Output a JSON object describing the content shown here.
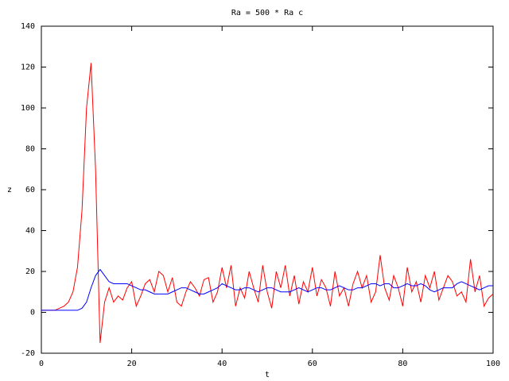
{
  "chart_data": {
    "type": "line",
    "title": "Ra = 500 * Ra c",
    "x_label": "t",
    "y_label": "z",
    "x": [
      0,
      1,
      2,
      3,
      4,
      5,
      6,
      7,
      8,
      9,
      10,
      11,
      12,
      13,
      14,
      15,
      16,
      17,
      18,
      19,
      20,
      21,
      22,
      23,
      24,
      25,
      26,
      27,
      28,
      29,
      30,
      31,
      32,
      33,
      34,
      35,
      36,
      37,
      38,
      39,
      40,
      41,
      42,
      43,
      44,
      45,
      46,
      47,
      48,
      49,
      50,
      51,
      52,
      53,
      54,
      55,
      56,
      57,
      58,
      59,
      60,
      61,
      62,
      63,
      64,
      65,
      66,
      67,
      68,
      69,
      70,
      71,
      72,
      73,
      74,
      75,
      76,
      77,
      78,
      79,
      80,
      81,
      82,
      83,
      84,
      85,
      86,
      87,
      88,
      89,
      90,
      91,
      92,
      93,
      94,
      95,
      96,
      97,
      98,
      99,
      100
    ],
    "series": [
      {
        "color": "#ff0000",
        "values": [
          1,
          1,
          1,
          1,
          2,
          3,
          5,
          10,
          22,
          50,
          100,
          122,
          70,
          -15,
          5,
          12,
          5,
          8,
          6,
          12,
          15,
          3,
          8,
          14,
          16,
          10,
          20,
          18,
          10,
          17,
          5,
          3,
          10,
          15,
          12,
          8,
          16,
          17,
          5,
          10,
          22,
          12,
          23,
          3,
          12,
          7,
          20,
          12,
          5,
          23,
          10,
          2,
          20,
          12,
          23,
          8,
          18,
          4,
          15,
          10,
          22,
          8,
          16,
          12,
          3,
          20,
          8,
          12,
          3,
          14,
          20,
          12,
          18,
          5,
          10,
          28,
          12,
          6,
          18,
          12,
          3,
          22,
          10,
          15,
          5,
          18,
          12,
          20,
          6,
          12,
          18,
          15,
          8,
          10,
          5,
          26,
          10,
          18,
          3,
          7,
          9
        ]
      },
      {
        "color": "#0000ff",
        "values": [
          1,
          1,
          1,
          1,
          1,
          1,
          1,
          1,
          1,
          2,
          5,
          12,
          18,
          21,
          18,
          15,
          14,
          14,
          14,
          14,
          13,
          12,
          11,
          11,
          10,
          9,
          9,
          9,
          9,
          10,
          11,
          12,
          12,
          11,
          10,
          9,
          9,
          10,
          11,
          12,
          14,
          13,
          12,
          11,
          11,
          12,
          12,
          11,
          10,
          11,
          12,
          12,
          11,
          10,
          10,
          10,
          11,
          12,
          11,
          10,
          11,
          12,
          12,
          11,
          11,
          12,
          13,
          12,
          11,
          11,
          12,
          12,
          13,
          14,
          14,
          13,
          14,
          14,
          12,
          12,
          13,
          14,
          13,
          13,
          14,
          13,
          11,
          10,
          11,
          12,
          12,
          12,
          14,
          15,
          14,
          13,
          12,
          11,
          12,
          13,
          13
        ]
      }
    ],
    "xlim": [
      0,
      100
    ],
    "ylim": [
      -20,
      140
    ],
    "xticks": [
      0,
      20,
      40,
      60,
      80,
      100
    ],
    "yticks": [
      -20,
      0,
      20,
      40,
      60,
      80,
      100,
      120,
      140
    ]
  }
}
